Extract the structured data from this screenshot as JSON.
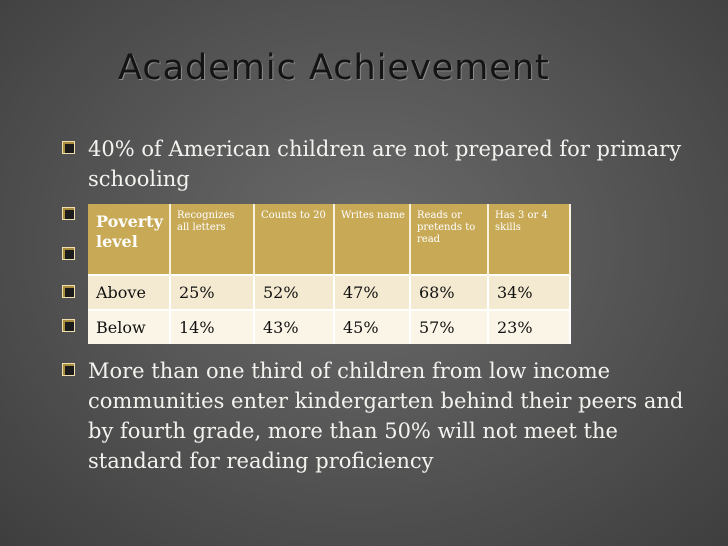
{
  "slide": {
    "title": "Academic Achievement",
    "bullets": [
      "40% of American children are not prepared for primary schooling",
      "More than one third of children from low income communities enter kindergarten behind their peers and by fourth grade, more than 50% will not meet the standard for reading proficiency"
    ]
  },
  "table": {
    "headers": [
      "Poverty level",
      "Recognizes all letters",
      "Counts to 20",
      "Writes name",
      "Reads or pretends to read",
      "Has 3 or 4 skills"
    ],
    "rows": [
      [
        "Above",
        "25%",
        "52%",
        "47%",
        "68%",
        "34%"
      ],
      [
        "Below",
        "14%",
        "43%",
        "45%",
        "57%",
        "23%"
      ]
    ]
  },
  "colors": {
    "header_fill": "#c7a956",
    "table_fill": "#f4ead2",
    "bullet_accent": "#a88d3e"
  }
}
